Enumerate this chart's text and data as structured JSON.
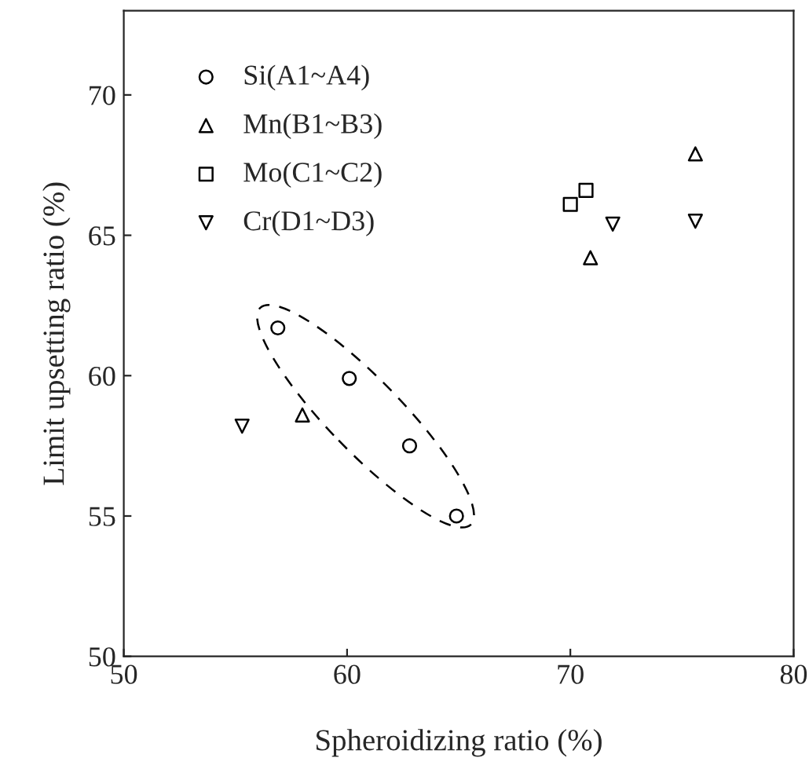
{
  "chart_data": {
    "type": "scatter",
    "xlabel": "Spheroidizing ratio (%)",
    "ylabel": "Limit upsetting ratio (%)",
    "xlim": [
      50,
      80
    ],
    "xticks": [
      50,
      60,
      70,
      80
    ],
    "ylim": [
      50,
      73
    ],
    "yticks": [
      50,
      55,
      60,
      65,
      70
    ],
    "grid": false,
    "legend": "top left",
    "series": [
      {
        "name": "Si(A1~A4)",
        "color": "#000000",
        "marker": "circle",
        "x": [
          56.9,
          60.1,
          62.8,
          64.9
        ],
        "values": [
          61.7,
          59.9,
          57.5,
          55.0
        ]
      },
      {
        "name": "Mn(B1~B3)",
        "color": "#000000",
        "marker": "triangle",
        "x": [
          58.0,
          70.9,
          75.6
        ],
        "values": [
          58.6,
          64.2,
          67.9
        ]
      },
      {
        "name": "Mo(C1~C2)",
        "color": "#000000",
        "marker": "square",
        "x": [
          70.0,
          70.7
        ],
        "values": [
          66.1,
          66.6
        ]
      },
      {
        "name": "Cr(D1~D3)",
        "color": "#000000",
        "marker": "triangle_down",
        "x": [
          55.3,
          71.9,
          75.6
        ],
        "values": [
          58.2,
          65.4,
          65.5
        ]
      }
    ]
  }
}
